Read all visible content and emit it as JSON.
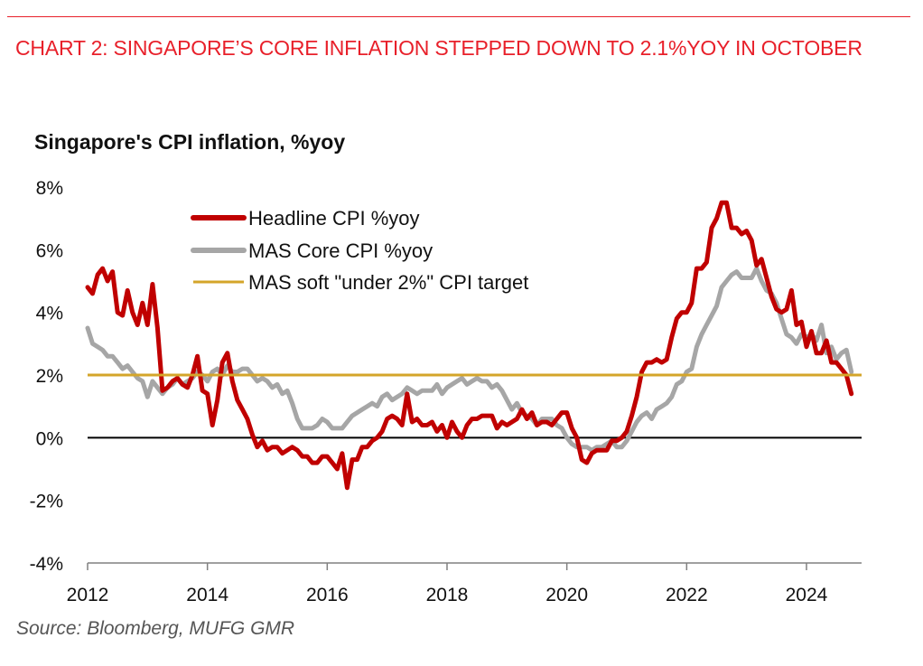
{
  "header": {
    "headline": "CHART 2: SINGAPORE’S CORE INFLATION STEPPED DOWN TO 2.1%YOY IN OCTOBER",
    "source": "Source: Bloomberg, MUFG GMR"
  },
  "colors": {
    "headline": "#e8202a",
    "headline_cpi": "#c00000",
    "core_cpi": "#a6a6a6",
    "target": "#d4a52a",
    "zero_line": "#000000"
  },
  "chart_data": {
    "type": "line",
    "title": "Singapore's CPI inflation, %yoy",
    "xlabel": "",
    "ylabel": "",
    "ylim": [
      -4,
      8
    ],
    "xlim": [
      2012.0,
      2024.92
    ],
    "y_ticks": [
      8,
      6,
      4,
      2,
      0,
      -2,
      -4
    ],
    "y_tick_labels": [
      "8%",
      "6%",
      "4%",
      "2%",
      "0%",
      "-2%",
      "-4%"
    ],
    "x_ticks": [
      2012,
      2014,
      2016,
      2018,
      2020,
      2022,
      2024
    ],
    "x_tick_labels": [
      "2012",
      "2014",
      "2016",
      "2018",
      "2020",
      "2022",
      "2024"
    ],
    "legend_position": "top-left",
    "grid": false,
    "hlines": [
      {
        "name": "MAS soft \"under 2%\" CPI target",
        "value": 2
      },
      {
        "name": "zero",
        "value": 0
      }
    ],
    "series": [
      {
        "name": "Headline CPI %yoy",
        "start": "2012-01",
        "values": [
          4.8,
          4.6,
          5.2,
          5.4,
          5.0,
          5.3,
          4.0,
          3.9,
          4.7,
          4.0,
          3.6,
          4.3,
          3.6,
          4.9,
          3.5,
          1.5,
          1.6,
          1.8,
          1.9,
          1.7,
          1.6,
          2.0,
          2.6,
          1.5,
          1.4,
          0.4,
          1.2,
          2.4,
          2.7,
          1.8,
          1.2,
          0.9,
          0.6,
          0.1,
          -0.3,
          -0.1,
          -0.4,
          -0.3,
          -0.3,
          -0.5,
          -0.4,
          -0.3,
          -0.4,
          -0.6,
          -0.6,
          -0.8,
          -0.8,
          -0.6,
          -0.6,
          -0.8,
          -1.0,
          -0.5,
          -1.6,
          -0.7,
          -0.7,
          -0.3,
          -0.3,
          -0.1,
          0.0,
          0.2,
          0.6,
          0.7,
          0.6,
          0.4,
          1.4,
          0.5,
          0.6,
          0.4,
          0.4,
          0.5,
          0.2,
          0.4,
          0.0,
          0.5,
          0.2,
          0.0,
          0.4,
          0.6,
          0.6,
          0.7,
          0.7,
          0.7,
          0.3,
          0.5,
          0.4,
          0.5,
          0.6,
          0.9,
          0.6,
          0.8,
          0.4,
          0.5,
          0.5,
          0.4,
          0.6,
          0.8,
          0.8,
          0.3,
          0.0,
          -0.7,
          -0.8,
          -0.5,
          -0.4,
          -0.4,
          -0.4,
          -0.1,
          -0.1,
          0.0,
          0.2,
          0.7,
          1.3,
          2.1,
          2.4,
          2.4,
          2.5,
          2.4,
          2.5,
          3.2,
          3.8,
          4.0,
          4.0,
          4.3,
          5.4,
          5.4,
          5.6,
          6.7,
          7.0,
          7.5,
          7.5,
          6.7,
          6.7,
          6.5,
          6.6,
          6.3,
          5.5,
          5.7,
          5.1,
          4.5,
          4.1,
          4.0,
          4.1,
          4.7,
          3.6,
          3.7,
          2.9,
          3.4,
          2.7,
          2.7,
          3.1,
          2.4,
          2.4,
          2.2,
          2.0,
          1.4
        ]
      },
      {
        "name": "MAS Core CPI %yoy",
        "start": "2012-01",
        "values": [
          3.5,
          3.0,
          2.9,
          2.8,
          2.6,
          2.6,
          2.4,
          2.2,
          2.3,
          2.1,
          1.9,
          1.8,
          1.3,
          1.8,
          1.6,
          1.4,
          1.6,
          1.7,
          1.9,
          1.7,
          1.8,
          1.9,
          2.1,
          2.0,
          1.8,
          2.1,
          2.2,
          2.0,
          2.3,
          2.1,
          2.1,
          2.2,
          2.2,
          2.0,
          1.8,
          1.9,
          1.8,
          1.6,
          1.7,
          1.4,
          1.5,
          1.1,
          0.6,
          0.3,
          0.3,
          0.3,
          0.4,
          0.6,
          0.5,
          0.3,
          0.3,
          0.3,
          0.5,
          0.7,
          0.8,
          0.9,
          1.0,
          1.1,
          1.0,
          1.3,
          1.4,
          1.2,
          1.3,
          1.4,
          1.6,
          1.5,
          1.4,
          1.5,
          1.5,
          1.5,
          1.7,
          1.4,
          1.6,
          1.7,
          1.8,
          1.9,
          1.7,
          1.8,
          1.9,
          1.8,
          1.8,
          1.6,
          1.7,
          1.5,
          1.2,
          0.9,
          1.1,
          0.8,
          0.7,
          0.6,
          0.4,
          0.6,
          0.6,
          0.6,
          0.4,
          0.3,
          0.0,
          -0.2,
          -0.3,
          -0.3,
          -0.3,
          -0.4,
          -0.3,
          -0.3,
          -0.2,
          -0.1,
          -0.3,
          -0.3,
          -0.1,
          0.2,
          0.5,
          0.7,
          0.8,
          0.6,
          0.9,
          1.0,
          1.1,
          1.3,
          1.7,
          1.8,
          2.1,
          2.2,
          2.9,
          3.3,
          3.6,
          3.9,
          4.2,
          4.8,
          5.0,
          5.2,
          5.3,
          5.1,
          5.1,
          5.1,
          5.4,
          5.0,
          4.7,
          4.6,
          4.3,
          3.8,
          3.3,
          3.2,
          3.0,
          3.3,
          3.2,
          3.3,
          3.1,
          3.6,
          2.7,
          2.9,
          2.5,
          2.7,
          2.8,
          2.1
        ]
      }
    ]
  },
  "legend": [
    {
      "label": "Headline CPI %yoy"
    },
    {
      "label": "MAS Core CPI %yoy"
    },
    {
      "label": "MAS soft \"under 2%\" CPI target"
    }
  ]
}
